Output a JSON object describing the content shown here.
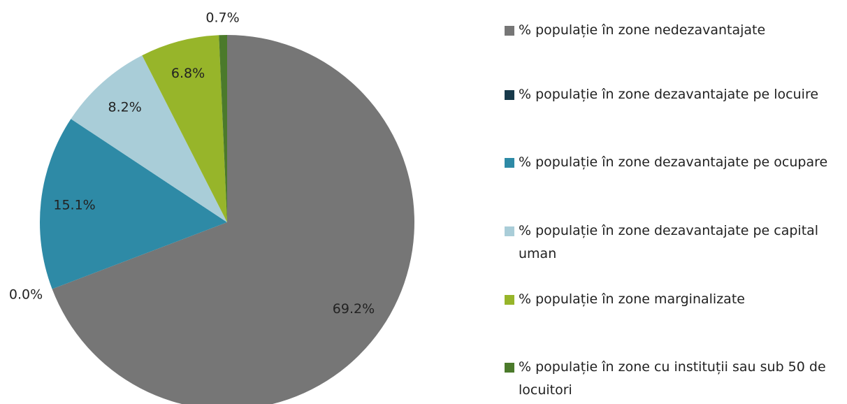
{
  "chart_data": {
    "type": "pie",
    "series": [
      {
        "name": "% populație în zone nedezavantajate",
        "color": "#767676",
        "values": [
          69.2
        ],
        "value_labels": [
          "69.2%"
        ]
      },
      {
        "name": "% populație în zone dezavantajate pe locuire",
        "color": "#17394a",
        "values": [
          0.0
        ],
        "value_labels": [
          "0.0%"
        ]
      },
      {
        "name": "% populație în zone dezavantajate pe ocupare",
        "color": "#2e8aa6",
        "values": [
          15.1
        ],
        "value_labels": [
          "15.1%"
        ]
      },
      {
        "name": "% populație în zone dezavantajate pe capital uman",
        "color": "#a9cdd8",
        "values": [
          8.2
        ],
        "value_labels": [
          "8.2%"
        ]
      },
      {
        "name": "% populație în zone marginalizate",
        "color": "#97b52a",
        "values": [
          6.8
        ],
        "value_labels": [
          "6.8%"
        ]
      },
      {
        "name": "% populație în zone cu instituții sau sub 50 de locuitori",
        "color": "#4b7a2b",
        "values": [
          0.7
        ],
        "value_labels": [
          "0.7%"
        ]
      }
    ],
    "legend": "right"
  }
}
